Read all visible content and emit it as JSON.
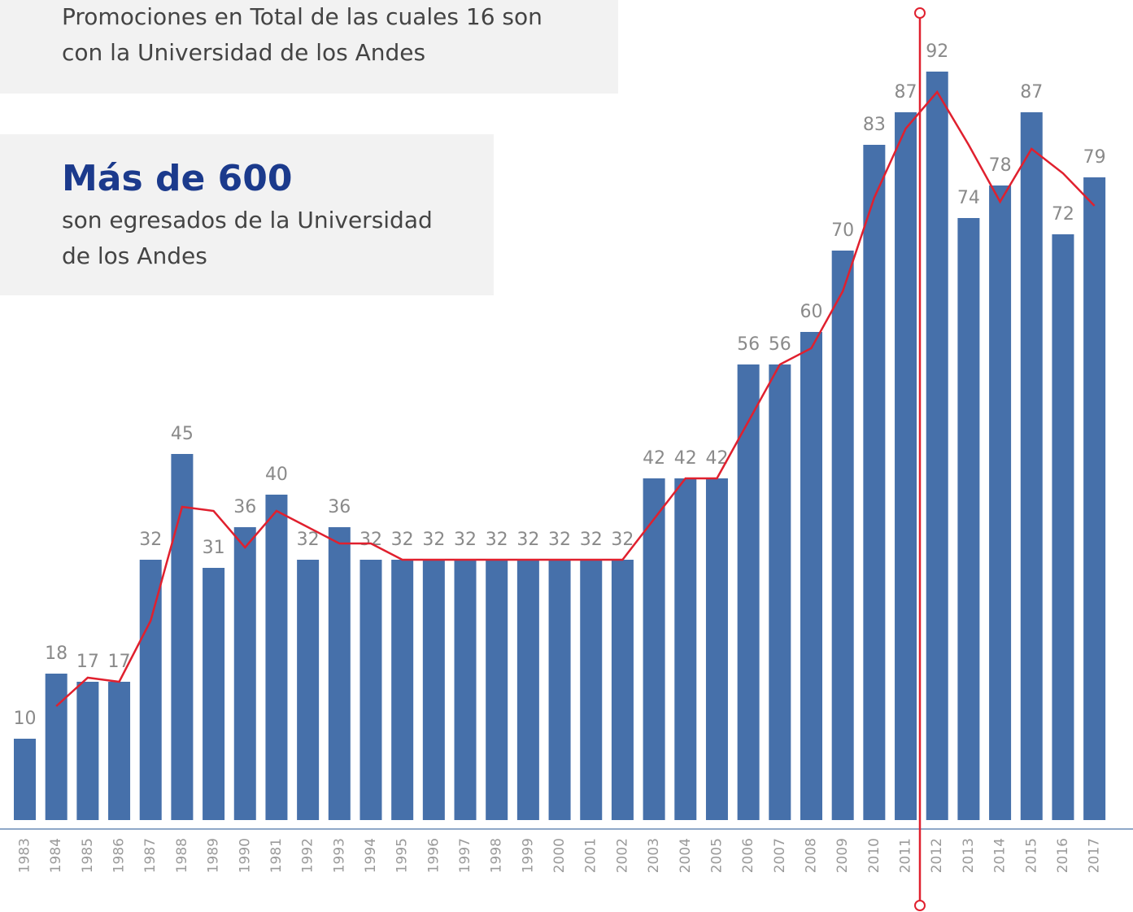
{
  "chart_data": {
    "type": "bar",
    "annotations": {
      "box1": [
        "Promociones en Total de las cuales 16 son",
        "con la Universidad de los Andes"
      ],
      "box2_title": "Más de 600",
      "box2": [
        "son egresados de la Universidad",
        "de los Andes"
      ]
    },
    "categories": [
      "1983",
      "1984",
      "1985",
      "1986",
      "1987",
      "1988",
      "1989",
      "1990",
      "1981",
      "1992",
      "1993",
      "1994",
      "1995",
      "1996",
      "1997",
      "1998",
      "1999",
      "2000",
      "2001",
      "2002",
      "2003",
      "2004",
      "2005",
      "2006",
      "2007",
      "2008",
      "2009",
      "2010",
      "2011",
      "2012",
      "2013",
      "2014",
      "2015",
      "2016",
      "2017"
    ],
    "values": [
      10,
      18,
      17,
      17,
      32,
      45,
      31,
      36,
      40,
      32,
      36,
      32,
      32,
      32,
      32,
      32,
      32,
      32,
      32,
      32,
      42,
      42,
      42,
      56,
      56,
      60,
      70,
      83,
      87,
      92,
      74,
      78,
      87,
      72,
      79
    ],
    "color": "#4670aa",
    "trend": {
      "color": "#e0202e",
      "values": [
        null,
        14,
        17.5,
        17,
        24.5,
        38.5,
        38,
        33.5,
        38,
        36,
        34,
        34,
        32,
        32,
        32,
        32,
        32,
        32,
        32,
        32,
        37,
        42,
        42,
        49,
        56,
        58,
        65,
        76.5,
        85,
        89.5,
        83,
        76,
        82.5,
        79.5,
        75.5
      ]
    },
    "ylim": [
      0,
      100
    ]
  }
}
